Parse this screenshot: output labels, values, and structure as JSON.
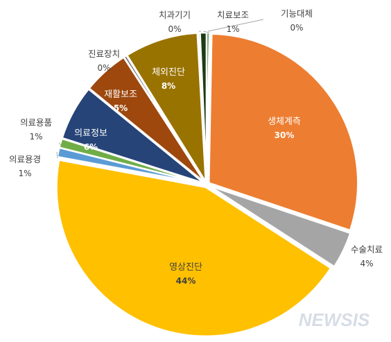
{
  "chart_data": {
    "type": "pie",
    "slices": [
      {
        "label": "기능대체",
        "value": 0.3,
        "pct_label": "0%",
        "color": "#3a7a2a"
      },
      {
        "label": "생체계측",
        "value": 30,
        "pct_label": "30%",
        "color": "#ed7d31"
      },
      {
        "label": "수술치료",
        "value": 4,
        "pct_label": "4%",
        "color": "#a5a5a5"
      },
      {
        "label": "영상진단",
        "value": 44,
        "pct_label": "44%",
        "color": "#ffc000"
      },
      {
        "label": "의료용경",
        "value": 1,
        "pct_label": "1%",
        "color": "#5b9bd5"
      },
      {
        "label": "의료용품",
        "value": 1,
        "pct_label": "1%",
        "color": "#70ad47"
      },
      {
        "label": "의료정보",
        "value": 6,
        "pct_label": "6%",
        "color": "#264478"
      },
      {
        "label": "재활보조",
        "value": 5,
        "pct_label": "5%",
        "color": "#9e480e"
      },
      {
        "label": "진료장치",
        "value": 0.3,
        "pct_label": "0%",
        "color": "#636363"
      },
      {
        "label": "체외진단",
        "value": 8,
        "pct_label": "8%",
        "color": "#997300"
      },
      {
        "label": "치과기기",
        "value": 0.2,
        "pct_label": "0%",
        "color": "#43682b"
      },
      {
        "label": "치료보조",
        "value": 0.7,
        "pct_label": "1%",
        "color": "#1e3a14"
      }
    ]
  },
  "watermark": "NEWSIS"
}
